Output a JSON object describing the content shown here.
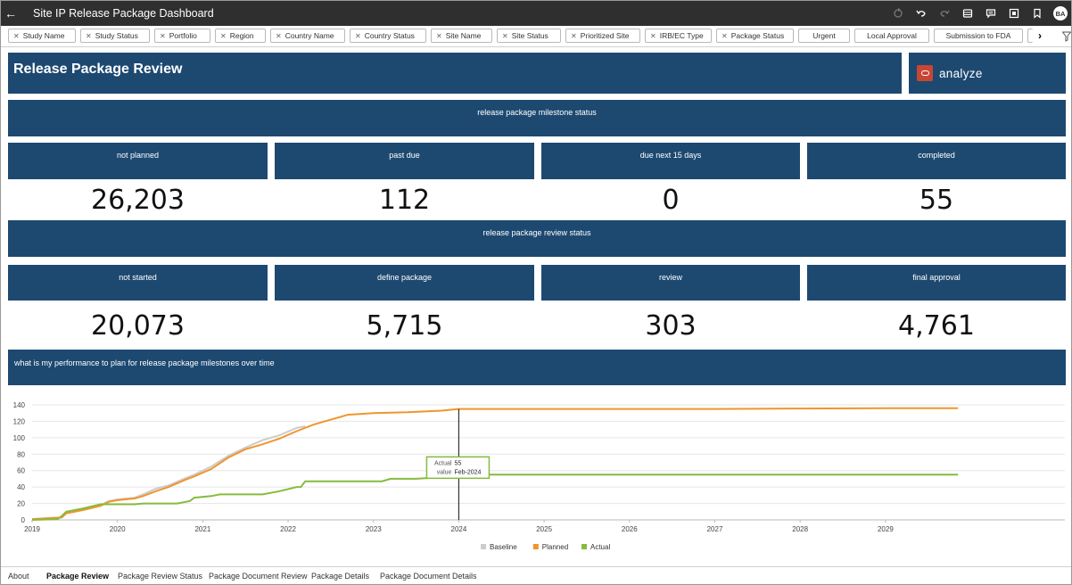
{
  "window": {
    "title": "Site IP Release Package Dashboard"
  },
  "filters": [
    "Study Name",
    "Study Status",
    "Portfolio",
    "Region",
    "Country Name",
    "Country Status",
    "Site Name",
    "Site Status",
    "Prioritized Site",
    "IRB/EC Type",
    "Package Status",
    "Urgent",
    "Local Approval",
    "Submission to FDA"
  ],
  "header": {
    "title": "Release Package Review",
    "analyze_label": "analyze"
  },
  "milestone": {
    "section_title": "release package milestone status",
    "tiles": [
      {
        "label": "not planned",
        "value": "26,203"
      },
      {
        "label": "past due",
        "value": "112"
      },
      {
        "label": "due next 15 days",
        "value": "0"
      },
      {
        "label": "completed",
        "value": "55"
      }
    ]
  },
  "review": {
    "section_title": "release package review status",
    "tiles": [
      {
        "label": "not started",
        "value": "20,073"
      },
      {
        "label": "define package",
        "value": "5,715"
      },
      {
        "label": "review",
        "value": "303"
      },
      {
        "label": "final approval",
        "value": "4,761"
      }
    ]
  },
  "chart_section": {
    "title": "what is my performance to plan for release package milestones over time"
  },
  "chart_data": {
    "type": "line",
    "title": "",
    "xlabel": "",
    "ylabel": "",
    "xlim": [
      2019.0,
      2029.9
    ],
    "ylim": [
      0,
      140
    ],
    "x_ticks": [
      "2019",
      "2020",
      "2021",
      "2022",
      "2023",
      "2024",
      "2025",
      "2026",
      "2027",
      "2028",
      "2029"
    ],
    "y_ticks": [
      0,
      20,
      40,
      60,
      80,
      100,
      120,
      140
    ],
    "grid": true,
    "legend": "bottom",
    "series": [
      {
        "name": "Baseline",
        "color": "#cccccc",
        "x": [
          2019.0,
          2019.35,
          2019.4,
          2019.6,
          2019.8,
          2019.9,
          2020.0,
          2020.2,
          2020.3,
          2020.45,
          2020.6,
          2020.8,
          2020.9,
          2021.1,
          2021.3,
          2021.5,
          2021.7,
          2021.9,
          2022.1,
          2022.2
        ],
        "y": [
          1,
          3,
          9,
          13,
          18,
          23,
          25,
          27,
          31,
          38,
          42,
          51,
          55,
          65,
          78,
          88,
          97,
          103,
          112,
          114
        ]
      },
      {
        "name": "Planned",
        "color": "#f0952d",
        "x": [
          2019.0,
          2019.35,
          2019.4,
          2019.6,
          2019.8,
          2019.9,
          2020.0,
          2020.2,
          2020.3,
          2020.45,
          2020.6,
          2020.8,
          2020.9,
          2021.1,
          2021.3,
          2021.5,
          2021.7,
          2021.9,
          2022.1,
          2022.3,
          2022.5,
          2022.7,
          2023.0,
          2023.4,
          2023.8,
          2024.0,
          2025.0,
          2026.0,
          2027.0,
          2028.0,
          2029.0,
          2029.85
        ],
        "y": [
          1,
          3,
          8,
          12,
          17,
          22,
          24,
          26,
          29,
          35,
          40,
          49,
          53,
          62,
          76,
          86,
          92,
          99,
          108,
          116,
          122,
          128,
          130,
          131,
          133,
          135,
          135,
          135,
          135,
          135.5,
          136,
          136
        ]
      },
      {
        "name": "Actual",
        "color": "#86bc3d",
        "x": [
          2019.0,
          2019.3,
          2019.35,
          2019.4,
          2019.6,
          2019.8,
          2020.2,
          2020.3,
          2020.7,
          2020.85,
          2020.9,
          2021.1,
          2021.2,
          2021.4,
          2021.7,
          2021.9,
          2022.1,
          2022.15,
          2022.2,
          2023.1,
          2023.2,
          2023.5,
          2023.8,
          2024.0,
          2025.0,
          2026.0,
          2027.0,
          2028.0,
          2029.0,
          2029.85
        ],
        "y": [
          0,
          1,
          5,
          10,
          14,
          19,
          19,
          20,
          20,
          23,
          27,
          29,
          31,
          31,
          31,
          35,
          40,
          40,
          47,
          47,
          50,
          50,
          52,
          55,
          55,
          55,
          55,
          55,
          55,
          55
        ]
      }
    ],
    "tooltip": {
      "at_x": 2024.0,
      "series_label": "Actual",
      "series_value": "55",
      "value_label": "value",
      "value": "Feb-2024"
    }
  },
  "tabs": {
    "items": [
      "About",
      "Package Review",
      "Package Review Status",
      "Package Document Review",
      "Package Details",
      "Package Document Details"
    ],
    "active": 1
  }
}
